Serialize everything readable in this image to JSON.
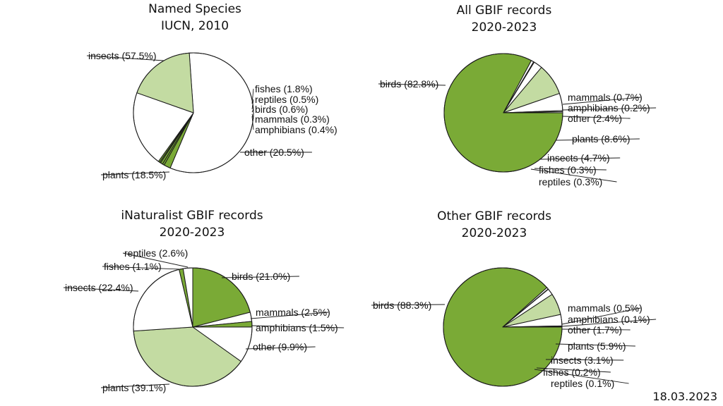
{
  "colors": {
    "green": "#7aaa36",
    "light_green": "#c3dba2",
    "white": "#ffffff",
    "outline": "#1a1a1a"
  },
  "date_stamp": "18.03.2023",
  "chart_data": [
    {
      "type": "pie",
      "title": [
        "Named Species",
        "IUCN, 2010"
      ],
      "slices": [
        {
          "label": "insects (57.5%)",
          "value": 57.5,
          "fill": "white"
        },
        {
          "label": "fishes (1.8%)",
          "value": 1.8,
          "fill": "green"
        },
        {
          "label": "reptiles (0.5%)",
          "value": 0.5,
          "fill": "green"
        },
        {
          "label": "birds (0.6%)",
          "value": 0.6,
          "fill": "green"
        },
        {
          "label": "mammals (0.3%)",
          "value": 0.3,
          "fill": "green"
        },
        {
          "label": "amphibians (0.4%)",
          "value": 0.4,
          "fill": "green"
        },
        {
          "label": "other (20.5%)",
          "value": 20.5,
          "fill": "white"
        },
        {
          "label": "plants (18.5%)",
          "value": 18.5,
          "fill": "light_green"
        }
      ]
    },
    {
      "type": "pie",
      "title": [
        "All GBIF records",
        "2020-2023"
      ],
      "slices": [
        {
          "label": "birds (82.8%)",
          "value": 82.8,
          "fill": "green"
        },
        {
          "label": "mammals (0.7%)",
          "value": 0.7,
          "fill": "white"
        },
        {
          "label": "amphibians (0.2%)",
          "value": 0.2,
          "fill": "white"
        },
        {
          "label": "other (2.4%)",
          "value": 2.4,
          "fill": "white"
        },
        {
          "label": "plants (8.6%)",
          "value": 8.6,
          "fill": "light_green"
        },
        {
          "label": "insects (4.7%)",
          "value": 4.7,
          "fill": "white"
        },
        {
          "label": "fishes (0.3%)",
          "value": 0.3,
          "fill": "white"
        },
        {
          "label": "reptiles (0.3%)",
          "value": 0.3,
          "fill": "white"
        }
      ]
    },
    {
      "type": "pie",
      "title": [
        "iNaturalist GBIF records",
        "2020-2023"
      ],
      "slices": [
        {
          "label": "birds (21.0%)",
          "value": 21.0,
          "fill": "green"
        },
        {
          "label": "mammals (2.5%)",
          "value": 2.5,
          "fill": "white"
        },
        {
          "label": "amphibians (1.5%)",
          "value": 1.5,
          "fill": "green"
        },
        {
          "label": "other (9.9%)",
          "value": 9.9,
          "fill": "white"
        },
        {
          "label": "plants (39.1%)",
          "value": 39.1,
          "fill": "light_green"
        },
        {
          "label": "insects (22.4%)",
          "value": 22.4,
          "fill": "white"
        },
        {
          "label": "fishes (1.1%)",
          "value": 1.1,
          "fill": "green"
        },
        {
          "label": "reptiles (2.6%)",
          "value": 2.6,
          "fill": "white"
        }
      ]
    },
    {
      "type": "pie",
      "title": [
        "Other GBIF records",
        "2020-2023"
      ],
      "slices": [
        {
          "label": "birds (88.3%)",
          "value": 88.3,
          "fill": "green"
        },
        {
          "label": "mammals (0.5%)",
          "value": 0.5,
          "fill": "white"
        },
        {
          "label": "amphibians (0.1%)",
          "value": 0.1,
          "fill": "white"
        },
        {
          "label": "other (1.7%)",
          "value": 1.7,
          "fill": "white"
        },
        {
          "label": "plants (5.9%)",
          "value": 5.9,
          "fill": "light_green"
        },
        {
          "label": "insects (3.1%)",
          "value": 3.1,
          "fill": "white"
        },
        {
          "label": "fishes (0.2%)",
          "value": 0.2,
          "fill": "white"
        },
        {
          "label": "reptiles (0.1%)",
          "value": 0.1,
          "fill": "white"
        }
      ]
    }
  ]
}
